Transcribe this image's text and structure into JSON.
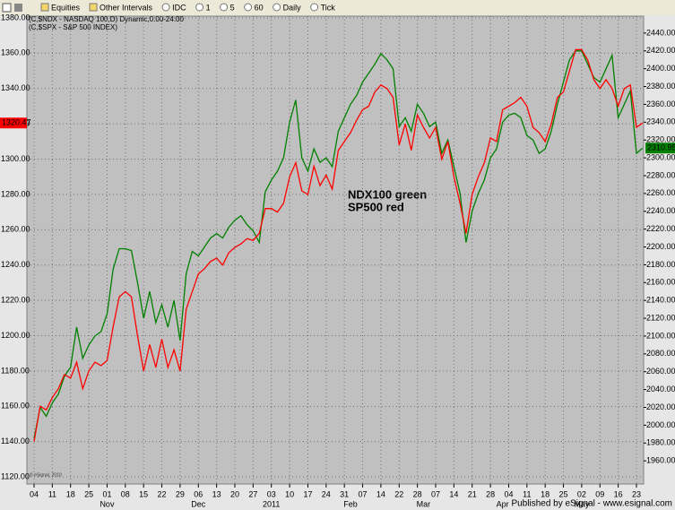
{
  "toolbar": [
    "Equities",
    "Other Intervals",
    "IDC",
    "1",
    "5",
    "60",
    "Daily",
    "Tick"
  ],
  "publisher": "Published by eSignal - www.esignal.com",
  "chart_data": {
    "type": "line",
    "copyright": "© eSignal, 2010",
    "annotations": [
      "NDX100 green",
      "SP500 red"
    ],
    "last_value_labels": [
      {
        "value": 1320.47,
        "label": "1320.47"
      },
      {
        "value": 2310.95,
        "label": "2310.95"
      }
    ],
    "categories": [
      "04",
      null,
      null,
      "11",
      null,
      null,
      "18",
      null,
      null,
      "25",
      null,
      null,
      "01",
      null,
      null,
      "08",
      null,
      null,
      "15",
      null,
      null,
      "22",
      null,
      null,
      "29",
      null,
      null,
      "06",
      null,
      null,
      "13",
      null,
      null,
      "20",
      null,
      null,
      "27",
      null,
      null,
      "03",
      null,
      null,
      "10",
      null,
      null,
      "17",
      null,
      null,
      "24",
      null,
      null,
      "31",
      null,
      null,
      "07",
      null,
      null,
      "14",
      null,
      null,
      "22",
      null,
      null,
      "28",
      null,
      null,
      "07",
      null,
      null,
      "14",
      null,
      null,
      "21",
      null,
      null,
      "28",
      null,
      null,
      "04",
      null,
      null,
      "11",
      null,
      null,
      "18",
      null,
      null,
      "25",
      null,
      null,
      "02",
      null,
      null,
      "09",
      null,
      null,
      "16",
      null,
      null,
      "23",
      null
    ],
    "month_categories": [
      null,
      null,
      null,
      null,
      null,
      null,
      null,
      null,
      null,
      null,
      null,
      null,
      "Nov",
      null,
      null,
      null,
      null,
      null,
      null,
      null,
      null,
      null,
      null,
      null,
      null,
      null,
      null,
      "Dec",
      null,
      null,
      null,
      null,
      null,
      null,
      null,
      null,
      null,
      null,
      null,
      "2011",
      null,
      null,
      null,
      null,
      null,
      null,
      null,
      null,
      null,
      null,
      null,
      null,
      "Feb",
      null,
      null,
      null,
      null,
      null,
      null,
      null,
      null,
      null,
      null,
      null,
      "Mar",
      null,
      null,
      null,
      null,
      null,
      null,
      null,
      null,
      null,
      null,
      null,
      null,
      "Apr",
      null,
      null,
      null,
      null,
      null,
      null,
      null,
      null,
      null,
      null,
      null,
      null,
      "May",
      null,
      null,
      null,
      null,
      null,
      null,
      null,
      null,
      null,
      null
    ],
    "series": [
      {
        "name": "(C,$NDX - NASDAQ 100,D) Dynamic,0:00-24:00",
        "color": "#008000",
        "axis": "y2",
        "values": [
          1985,
          2020,
          2010,
          2025,
          2035,
          2055,
          2065,
          2110,
          2075,
          2090,
          2100,
          2105,
          2125,
          2175,
          2198,
          2198,
          2196,
          2160,
          2120,
          2150,
          2115,
          2135,
          2110,
          2140,
          2095,
          2170,
          2195,
          2190,
          2200,
          2210,
          2215,
          2210,
          2222,
          2230,
          2235,
          2225,
          2218,
          2205,
          2262,
          2275,
          2285,
          2300,
          2340,
          2365,
          2300,
          2285,
          2310,
          2295,
          2300,
          2290,
          2330,
          2345,
          2360,
          2370,
          2385,
          2395,
          2405,
          2417,
          2410,
          2400,
          2335,
          2345,
          2330,
          2360,
          2350,
          2335,
          2340,
          2305,
          2320,
          2290,
          2260,
          2205,
          2240,
          2260,
          2275,
          2300,
          2310,
          2340,
          2348,
          2350,
          2345,
          2325,
          2320,
          2305,
          2310,
          2330,
          2360,
          2385,
          2410,
          2420,
          2420,
          2405,
          2390,
          2385,
          2400,
          2415,
          2345,
          2360,
          2375,
          2305,
          2310.95
        ]
      },
      {
        "name": "(C,$SPX - S&P 500 INDEX)",
        "color": "#ff0000",
        "values": [
          1140,
          1160,
          1158,
          1165,
          1170,
          1178,
          1176,
          1185,
          1170,
          1180,
          1185,
          1183,
          1186,
          1205,
          1222,
          1225,
          1222,
          1200,
          1180,
          1195,
          1182,
          1198,
          1182,
          1192,
          1180,
          1215,
          1225,
          1235,
          1238,
          1242,
          1244,
          1240,
          1247,
          1250,
          1252,
          1255,
          1254,
          1258,
          1272,
          1272,
          1270,
          1275,
          1290,
          1298,
          1282,
          1280,
          1296,
          1285,
          1291,
          1283,
          1305,
          1310,
          1315,
          1322,
          1328,
          1330,
          1338,
          1342,
          1340,
          1335,
          1308,
          1320,
          1305,
          1325,
          1318,
          1312,
          1318,
          1300,
          1310,
          1290,
          1275,
          1258,
          1280,
          1290,
          1298,
          1312,
          1310,
          1328,
          1330,
          1332,
          1335,
          1330,
          1318,
          1315,
          1310,
          1320,
          1335,
          1338,
          1350,
          1362,
          1362,
          1356,
          1345,
          1340,
          1345,
          1340,
          1330,
          1340,
          1342,
          1318,
          1320.47
        ]
      }
    ],
    "ylim": [
      1116,
      1381
    ],
    "yticks": [
      {
        "value": 1120,
        "label": "1120.00"
      },
      {
        "value": 1140,
        "label": "1140.00"
      },
      {
        "value": 1160,
        "label": "1160.00"
      },
      {
        "value": 1180,
        "label": "1180.00"
      },
      {
        "value": 1200,
        "label": "1200.00"
      },
      {
        "value": 1220,
        "label": "1220.00"
      },
      {
        "value": 1240,
        "label": "1240.00"
      },
      {
        "value": 1260,
        "label": "1260.00"
      },
      {
        "value": 1280,
        "label": "1280.00"
      },
      {
        "value": 1300,
        "label": "1300.00"
      },
      {
        "value": 1320,
        "label": "1320.00"
      },
      {
        "value": 1340,
        "label": "1340.00"
      },
      {
        "value": 1360,
        "label": "1360.00"
      },
      {
        "value": 1380,
        "label": "1380.00"
      }
    ],
    "y2lim": [
      1934,
      2459
    ],
    "y2ticks": [
      {
        "value": 1960,
        "label": "1960.00"
      },
      {
        "value": 1980,
        "label": "1980.00"
      },
      {
        "value": 2000,
        "label": "2000.00"
      },
      {
        "value": 2020,
        "label": "2020.00"
      },
      {
        "value": 2040,
        "label": "2040.00"
      },
      {
        "value": 2060,
        "label": "2060.00"
      },
      {
        "value": 2080,
        "label": "2080.00"
      },
      {
        "value": 2100,
        "label": "2100.00"
      },
      {
        "value": 2120,
        "label": "2120.00"
      },
      {
        "value": 2140,
        "label": "2140.00"
      },
      {
        "value": 2160,
        "label": "2160.00"
      },
      {
        "value": 2180,
        "label": "2180.00"
      },
      {
        "value": 2200,
        "label": "2200.00"
      },
      {
        "value": 2220,
        "label": "2220.00"
      },
      {
        "value": 2240,
        "label": "2240.00"
      },
      {
        "value": 2260,
        "label": "2260.00"
      },
      {
        "value": 2280,
        "label": "2280.00"
      },
      {
        "value": 2300,
        "label": "2300.00"
      },
      {
        "value": 2320,
        "label": "2320.00"
      },
      {
        "value": 2340,
        "label": "2340.00"
      },
      {
        "value": 2360,
        "label": "2360.00"
      },
      {
        "value": 2380,
        "label": "2380.00"
      },
      {
        "value": 2400,
        "label": "2400.00"
      },
      {
        "value": 2420,
        "label": "2420.00"
      },
      {
        "value": 2440,
        "label": "2440.00"
      }
    ],
    "grid": true
  }
}
